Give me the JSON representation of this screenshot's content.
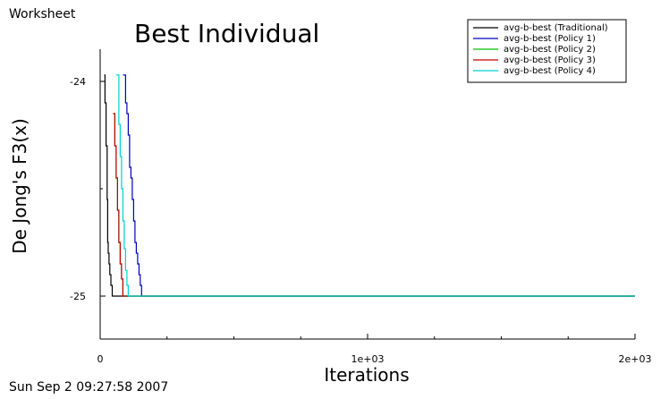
{
  "window": {
    "label": "Worksheet",
    "timestamp": "Sun Sep 2 09:27:58 2007"
  },
  "chart_data": {
    "type": "line",
    "title": "Best Individual",
    "xlabel": "Iterations",
    "ylabel": "De Jong's F3(x)",
    "xlim": [
      0,
      2000
    ],
    "ylim": [
      -25.2,
      -23.85
    ],
    "xticks": [
      {
        "value": 0,
        "label": "0"
      },
      {
        "value": 1000,
        "label": "1e+03"
      },
      {
        "value": 2000,
        "label": "2e+03"
      }
    ],
    "yticks": [
      {
        "value": -24,
        "label": "-24"
      },
      {
        "value": -25,
        "label": "-25"
      }
    ],
    "x_minor_step": 250,
    "y_minor_step": 0.5,
    "grid": false,
    "legend_position": "top-right",
    "series": [
      {
        "name": "avg-b-best (Traditional)",
        "color": "#000000",
        "points": [
          [
            15,
            -23.97
          ],
          [
            18,
            -24.1
          ],
          [
            22,
            -24.3
          ],
          [
            26,
            -24.55
          ],
          [
            28,
            -24.75
          ],
          [
            30,
            -24.8
          ],
          [
            33,
            -24.85
          ],
          [
            36,
            -24.9
          ],
          [
            40,
            -24.95
          ],
          [
            45,
            -25
          ],
          [
            2000,
            -25
          ]
        ]
      },
      {
        "name": "avg-b-best (Policy 1)",
        "color": "#0000c0",
        "points": [
          [
            85,
            -23.97
          ],
          [
            95,
            -24.1
          ],
          [
            100,
            -24.15
          ],
          [
            105,
            -24.25
          ],
          [
            110,
            -24.4
          ],
          [
            115,
            -24.45
          ],
          [
            120,
            -24.55
          ],
          [
            125,
            -24.65
          ],
          [
            130,
            -24.75
          ],
          [
            135,
            -24.8
          ],
          [
            140,
            -24.85
          ],
          [
            145,
            -24.9
          ],
          [
            150,
            -24.95
          ],
          [
            155,
            -25
          ],
          [
            2000,
            -25
          ]
        ]
      },
      {
        "name": "avg-b-best (Policy 2)",
        "color": "#00c000",
        "points": [
          [
            50,
            -24.15
          ],
          [
            55,
            -24.3
          ],
          [
            60,
            -24.45
          ],
          [
            65,
            -24.6
          ],
          [
            70,
            -24.75
          ],
          [
            75,
            -24.85
          ],
          [
            80,
            -24.92
          ],
          [
            85,
            -25
          ],
          [
            2000,
            -25
          ]
        ]
      },
      {
        "name": "avg-b-best (Policy 3)",
        "color": "#c00000",
        "points": [
          [
            48,
            -24.15
          ],
          [
            55,
            -24.3
          ],
          [
            60,
            -24.45
          ],
          [
            65,
            -24.6
          ],
          [
            70,
            -24.75
          ],
          [
            75,
            -24.85
          ],
          [
            80,
            -24.92
          ],
          [
            85,
            -25
          ],
          [
            2000,
            -25
          ]
        ]
      },
      {
        "name": "avg-b-best (Policy 4)",
        "color": "#00d0d0",
        "points": [
          [
            60,
            -23.97
          ],
          [
            70,
            -24.2
          ],
          [
            75,
            -24.35
          ],
          [
            80,
            -24.5
          ],
          [
            85,
            -24.65
          ],
          [
            90,
            -24.78
          ],
          [
            95,
            -24.88
          ],
          [
            100,
            -24.95
          ],
          [
            105,
            -25
          ],
          [
            2000,
            -25
          ]
        ]
      }
    ]
  }
}
